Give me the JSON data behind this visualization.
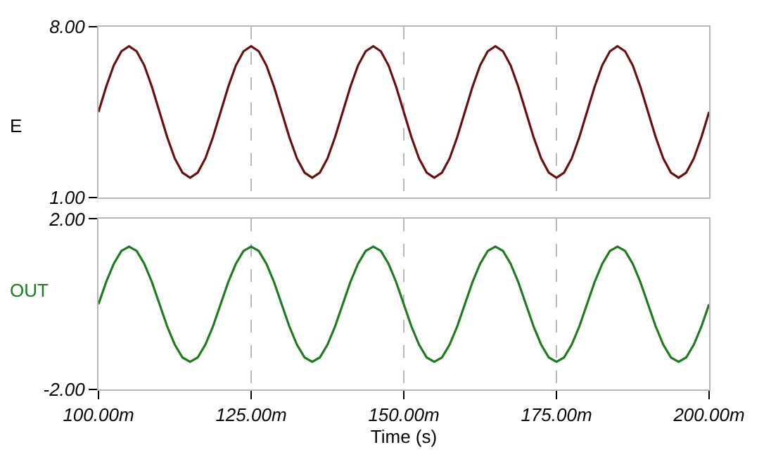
{
  "chart_data": [
    {
      "type": "line",
      "ylabel": "E",
      "grid": "x",
      "marker": "none",
      "line_style": "solid",
      "tick_labels": "y",
      "x": [
        100,
        101.25,
        102.5,
        103.75,
        105,
        106.25,
        107.5,
        108.75,
        110,
        111.25,
        112.5,
        113.75,
        115,
        116.25,
        117.5,
        118.75,
        120,
        121.25,
        122.5,
        123.75,
        125,
        126.25,
        127.5,
        128.75,
        130,
        131.25,
        132.5,
        133.75,
        135,
        136.25,
        137.5,
        138.75,
        140,
        141.25,
        142.5,
        143.75,
        145,
        146.25,
        147.5,
        148.75,
        150,
        151.25,
        152.5,
        153.75,
        155,
        156.25,
        157.5,
        158.75,
        160,
        161.25,
        162.5,
        163.75,
        165,
        166.25,
        167.5,
        168.75,
        170,
        171.25,
        172.5,
        173.75,
        175,
        176.25,
        177.5,
        178.75,
        180,
        181.25,
        182.5,
        183.75,
        185,
        186.25,
        187.5,
        188.75,
        190,
        191.25,
        192.5,
        193.75,
        195,
        196.25,
        197.5,
        198.75,
        200
      ],
      "series": [
        {
          "color": "#6b0e0e",
          "values": [
            4.5,
            5.53,
            6.41,
            6.99,
            7.2,
            6.99,
            6.41,
            5.53,
            4.5,
            3.47,
            2.59,
            2.01,
            1.8,
            2.01,
            2.59,
            3.47,
            4.5,
            5.53,
            6.41,
            6.99,
            7.2,
            6.99,
            6.41,
            5.53,
            4.5,
            3.47,
            2.59,
            2.01,
            1.8,
            2.01,
            2.59,
            3.47,
            4.5,
            5.53,
            6.41,
            6.99,
            7.2,
            6.99,
            6.41,
            5.53,
            4.5,
            3.47,
            2.59,
            2.01,
            1.8,
            2.01,
            2.59,
            3.47,
            4.5,
            5.53,
            6.41,
            6.99,
            7.2,
            6.99,
            6.41,
            5.53,
            4.5,
            3.47,
            2.59,
            2.01,
            1.8,
            2.01,
            2.59,
            3.47,
            4.5,
            5.53,
            6.41,
            6.99,
            7.2,
            6.99,
            6.41,
            5.53,
            4.5,
            3.47,
            2.59,
            2.01,
            1.8,
            2.01,
            2.59,
            3.47,
            4.5
          ]
        }
      ],
      "xlim": [
        100,
        200
      ],
      "xticks": [
        {
          "value": 100,
          "label": null
        },
        {
          "value": 125,
          "label": null
        },
        {
          "value": 150,
          "label": null
        },
        {
          "value": 175,
          "label": null
        },
        {
          "value": 200,
          "label": null
        }
      ],
      "ylim": [
        1,
        8
      ],
      "yticks": [
        {
          "value": 1,
          "label": "1.00"
        },
        {
          "value": 8,
          "label": "8.00"
        }
      ]
    },
    {
      "type": "line",
      "ylabel": "OUT",
      "xlabel": "Time (s)",
      "grid": "x",
      "marker": "none",
      "line_style": "solid",
      "x": [
        100,
        101.25,
        102.5,
        103.75,
        105,
        106.25,
        107.5,
        108.75,
        110,
        111.25,
        112.5,
        113.75,
        115,
        116.25,
        117.5,
        118.75,
        120,
        121.25,
        122.5,
        123.75,
        125,
        126.25,
        127.5,
        128.75,
        130,
        131.25,
        132.5,
        133.75,
        135,
        136.25,
        137.5,
        138.75,
        140,
        141.25,
        142.5,
        143.75,
        145,
        146.25,
        147.5,
        148.75,
        150,
        151.25,
        152.5,
        153.75,
        155,
        156.25,
        157.5,
        158.75,
        160,
        161.25,
        162.5,
        163.75,
        165,
        166.25,
        167.5,
        168.75,
        170,
        171.25,
        172.5,
        173.75,
        175,
        176.25,
        177.5,
        178.75,
        180,
        181.25,
        182.5,
        183.75,
        185,
        186.25,
        187.5,
        188.75,
        190,
        191.25,
        192.5,
        193.75,
        195,
        196.25,
        197.5,
        198.75,
        200
      ],
      "series": [
        {
          "color": "#1e7b1e",
          "values": [
            0,
            0.52,
            0.95,
            1.25,
            1.35,
            1.25,
            0.95,
            0.52,
            0,
            -0.52,
            -0.95,
            -1.25,
            -1.35,
            -1.25,
            -0.95,
            -0.52,
            0,
            0.52,
            0.95,
            1.25,
            1.35,
            1.25,
            0.95,
            0.52,
            0,
            -0.52,
            -0.95,
            -1.25,
            -1.35,
            -1.25,
            -0.95,
            -0.52,
            0,
            0.52,
            0.95,
            1.25,
            1.35,
            1.25,
            0.95,
            0.52,
            0,
            -0.52,
            -0.95,
            -1.25,
            -1.35,
            -1.25,
            -0.95,
            -0.52,
            0,
            0.52,
            0.95,
            1.25,
            1.35,
            1.25,
            0.95,
            0.52,
            0,
            -0.52,
            -0.95,
            -1.25,
            -1.35,
            -1.25,
            -0.95,
            -0.52,
            0,
            0.52,
            0.95,
            1.25,
            1.35,
            1.25,
            0.95,
            0.52,
            0,
            -0.52,
            -0.95,
            -1.25,
            -1.35,
            -1.25,
            -0.95,
            -0.52,
            0
          ]
        }
      ],
      "xlim": [
        100,
        200
      ],
      "xticks": [
        {
          "value": 100,
          "label": "100.00m"
        },
        {
          "value": 125,
          "label": "125.00m"
        },
        {
          "value": 150,
          "label": "150.00m"
        },
        {
          "value": 175,
          "label": "175.00m"
        },
        {
          "value": 200,
          "label": "200.00m"
        }
      ],
      "ylim": [
        -2,
        2
      ],
      "yticks": [
        {
          "value": -2,
          "label": "-2.00"
        },
        {
          "value": 2,
          "label": "2.00"
        }
      ]
    }
  ]
}
